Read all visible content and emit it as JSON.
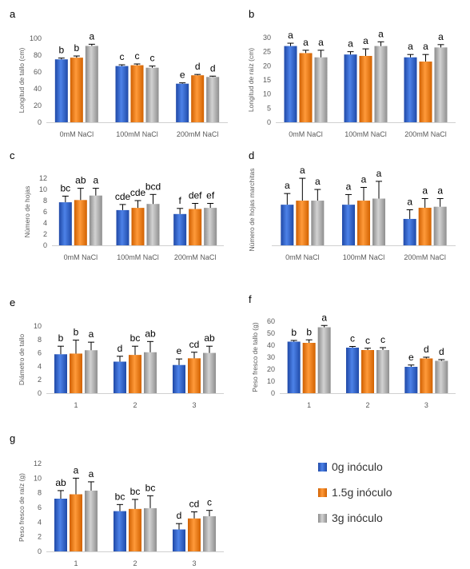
{
  "series_colors": {
    "0g inóculo": "#2f63c9",
    "1.5g inóculo": "#f07a0e",
    "3g inóculo": "#a6a6a6"
  },
  "legend": {
    "placement": "bottom-right",
    "items": [
      {
        "label": "0g inóculo",
        "color": "#2f63c9"
      },
      {
        "label": "1.5g inóculo",
        "color": "#f07a0e"
      },
      {
        "label": "3g inóculo",
        "color": "#a6a6a6"
      }
    ]
  },
  "chart_data": [
    {
      "panel": "a",
      "type": "bar",
      "ylabel": "Longitud de tallo (cm)",
      "ylim": [
        0,
        100
      ],
      "yticks": [
        0,
        20,
        40,
        60,
        80,
        100
      ],
      "categories": [
        "0mM NaCl",
        "100mM NaCl",
        "200mM NaCl"
      ],
      "series": [
        {
          "name": "0g inóculo",
          "values": [
            75,
            67,
            46
          ],
          "errors": [
            1.5,
            1.5,
            1
          ],
          "letters": [
            "b",
            "c",
            "e"
          ]
        },
        {
          "name": "1.5g inóculo",
          "values": [
            77,
            68,
            56
          ],
          "errors": [
            2,
            1.5,
            1
          ],
          "letters": [
            "b",
            "c",
            "d"
          ]
        },
        {
          "name": "3g inóculo",
          "values": [
            91,
            65,
            54
          ],
          "errors": [
            2,
            2,
            1
          ],
          "letters": [
            "a",
            "c",
            "d"
          ]
        }
      ]
    },
    {
      "panel": "b",
      "type": "bar",
      "ylabel": "Longitud de raíz (cm)",
      "ylim": [
        0,
        30
      ],
      "yticks": [
        0,
        5,
        10,
        15,
        20,
        25,
        30
      ],
      "categories": [
        "0mM NaCl",
        "100mM NaCl",
        "200mM NaCl"
      ],
      "series": [
        {
          "name": "0g inóculo",
          "values": [
            27,
            24,
            23
          ],
          "errors": [
            1,
            1,
            1
          ],
          "letters": [
            "a",
            "a",
            "a"
          ]
        },
        {
          "name": "1.5g inóculo",
          "values": [
            24.5,
            23.5,
            21.5
          ],
          "errors": [
            1,
            2.5,
            2.5
          ],
          "letters": [
            "a",
            "a",
            "a"
          ]
        },
        {
          "name": "3g inóculo",
          "values": [
            23,
            27,
            26.5
          ],
          "errors": [
            2.5,
            1.5,
            1
          ],
          "letters": [
            "a",
            "a",
            "a"
          ]
        }
      ]
    },
    {
      "panel": "c",
      "type": "bar",
      "ylabel": "Número de hojas",
      "ylim": [
        0,
        12
      ],
      "yticks": [
        0,
        2,
        4,
        6,
        8,
        10,
        12
      ],
      "categories": [
        "0mM NaCl",
        "100mM NaCl",
        "200mM NaCl"
      ],
      "series": [
        {
          "name": "0g inóculo",
          "values": [
            7.7,
            6.3,
            5.6
          ],
          "errors": [
            1.1,
            1,
            1
          ],
          "letters": [
            "bc",
            "cde",
            "f"
          ]
        },
        {
          "name": "1.5g inóculo",
          "values": [
            8.1,
            6.7,
            6.5
          ],
          "errors": [
            2.1,
            1.3,
            1
          ],
          "letters": [
            "ab",
            "cde",
            "def"
          ]
        },
        {
          "name": "3g inóculo",
          "values": [
            8.9,
            7.4,
            6.7
          ],
          "errors": [
            1.3,
            1.7,
            0.8
          ],
          "letters": [
            "a",
            "bcd",
            "ef"
          ]
        }
      ]
    },
    {
      "panel": "d",
      "type": "bar",
      "ylabel": "Número de hojas marchitas",
      "ylim": [
        0,
        7
      ],
      "yticks": [],
      "categories": [
        "0mM NaCl",
        "100mM NaCl",
        "200mM NaCl"
      ],
      "series": [
        {
          "name": "0g inóculo",
          "values": [
            4,
            4,
            2.6
          ],
          "errors": [
            1.1,
            1,
            0.9
          ],
          "letters": [
            "a",
            "a",
            "a"
          ]
        },
        {
          "name": "1.5g inóculo",
          "values": [
            4.4,
            4.4,
            3.7
          ],
          "errors": [
            2.2,
            1.3,
            0.9
          ],
          "letters": [
            "a",
            "a",
            "a"
          ]
        },
        {
          "name": "3g inóculo",
          "values": [
            4.4,
            4.6,
            3.8
          ],
          "errors": [
            1.1,
            1.7,
            0.8
          ],
          "letters": [
            "a",
            "a",
            "a"
          ]
        }
      ]
    },
    {
      "panel": "e",
      "type": "bar",
      "ylabel": "Diámetro de tallo",
      "ylim": [
        0,
        10
      ],
      "yticks": [
        0,
        2,
        4,
        6,
        8,
        10
      ],
      "categories": [
        "1",
        "2",
        "3"
      ],
      "series": [
        {
          "name": "0g inóculo",
          "values": [
            5.8,
            4.7,
            4.2
          ],
          "errors": [
            1.2,
            0.8,
            0.9
          ],
          "letters": [
            "b",
            "d",
            "e"
          ]
        },
        {
          "name": "1.5g inóculo",
          "values": [
            5.9,
            5.7,
            5.2
          ],
          "errors": [
            2,
            1.3,
            0.9
          ],
          "letters": [
            "b",
            "bc",
            "cd"
          ]
        },
        {
          "name": "3g inóculo",
          "values": [
            6.4,
            6.1,
            6
          ],
          "errors": [
            1.2,
            1.6,
            1
          ],
          "letters": [
            "a",
            "ab",
            "ab"
          ]
        }
      ]
    },
    {
      "panel": "f",
      "type": "bar",
      "ylabel": "Peso fresco de tallo (g)",
      "ylim": [
        0,
        60
      ],
      "yticks": [
        0,
        10,
        20,
        30,
        40,
        50,
        60
      ],
      "categories": [
        "1",
        "2",
        "3"
      ],
      "series": [
        {
          "name": "0g inóculo",
          "values": [
            43,
            38,
            22
          ],
          "errors": [
            1,
            1,
            1.5
          ],
          "letters": [
            "b",
            "c",
            "e"
          ]
        },
        {
          "name": "1.5g inóculo",
          "values": [
            42,
            36,
            29
          ],
          "errors": [
            2.5,
            1.5,
            1
          ],
          "letters": [
            "b",
            "c",
            "d"
          ]
        },
        {
          "name": "3g inóculo",
          "values": [
            55,
            36,
            27
          ],
          "errors": [
            1.5,
            2,
            1
          ],
          "letters": [
            "a",
            "c",
            "d"
          ]
        }
      ]
    },
    {
      "panel": "g",
      "type": "bar",
      "ylabel": "Peso fresco de raíz (g)",
      "ylim": [
        0,
        12
      ],
      "yticks": [
        0,
        2,
        4,
        6,
        8,
        10,
        12
      ],
      "categories": [
        "1",
        "2",
        "3"
      ],
      "series": [
        {
          "name": "0g inóculo",
          "values": [
            7.2,
            5.5,
            3
          ],
          "errors": [
            1.1,
            0.9,
            0.8
          ],
          "letters": [
            "ab",
            "bc",
            "d"
          ]
        },
        {
          "name": "1.5g inóculo",
          "values": [
            7.8,
            5.8,
            4.5
          ],
          "errors": [
            2.2,
            1.3,
            0.9
          ],
          "letters": [
            "a",
            "bc",
            "cd"
          ]
        },
        {
          "name": "3g inóculo",
          "values": [
            8.3,
            5.9,
            4.8
          ],
          "errors": [
            1.2,
            1.7,
            0.8
          ],
          "letters": [
            "a",
            "bc",
            "c"
          ]
        }
      ]
    }
  ]
}
